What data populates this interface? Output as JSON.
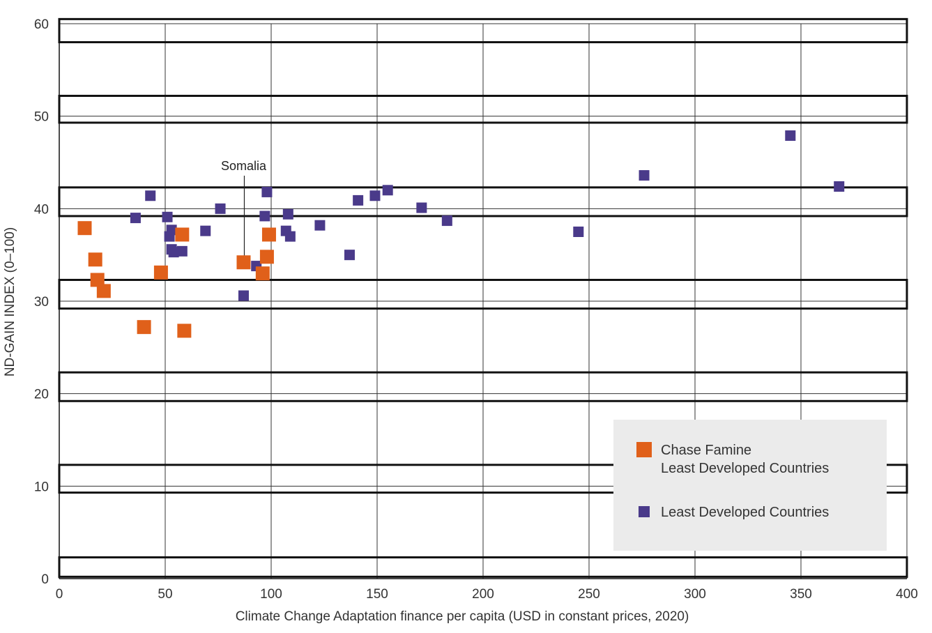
{
  "chart_data": {
    "type": "scatter",
    "title": "",
    "xlabel": "Climate Change Adaptation finance per capita (USD in constant prices, 2020)",
    "ylabel": "ND-GAIN INDEX (0–100)",
    "xlim": [
      0,
      400
    ],
    "ylim": [
      0,
      60
    ],
    "xticks": [
      0,
      50,
      100,
      150,
      200,
      250,
      300,
      350,
      400
    ],
    "yticks": [
      0,
      10,
      20,
      30,
      40,
      50,
      60
    ],
    "grid": true,
    "legend_position": "bottom-right",
    "bands": [
      [
        58,
        60.5
      ],
      [
        49.3,
        52.2
      ],
      [
        39.2,
        42.3
      ],
      [
        29.2,
        32.3
      ],
      [
        19.2,
        22.3
      ],
      [
        9.3,
        12.3
      ],
      [
        0.2,
        2.3
      ]
    ],
    "series": [
      {
        "name": "Chase Famine\nLeast Developed Countries",
        "color": "#e0601a",
        "marker": "square-large",
        "points": [
          {
            "x": 12,
            "y": 37.9
          },
          {
            "x": 17,
            "y": 34.5
          },
          {
            "x": 18,
            "y": 32.3
          },
          {
            "x": 21,
            "y": 31.1
          },
          {
            "x": 40,
            "y": 27.2
          },
          {
            "x": 48,
            "y": 33.1
          },
          {
            "x": 58,
            "y": 37.2
          },
          {
            "x": 59,
            "y": 26.8
          },
          {
            "x": 87,
            "y": 34.2
          },
          {
            "x": 96,
            "y": 33.0
          },
          {
            "x": 98,
            "y": 34.8
          },
          {
            "x": 99,
            "y": 37.2
          }
        ]
      },
      {
        "name": "Least Developed Countries",
        "color": "#4a3a8a",
        "marker": "square-small",
        "points": [
          {
            "x": 36,
            "y": 39.0
          },
          {
            "x": 43,
            "y": 41.4
          },
          {
            "x": 51,
            "y": 39.1
          },
          {
            "x": 52,
            "y": 37.0
          },
          {
            "x": 53,
            "y": 37.7
          },
          {
            "x": 53,
            "y": 35.6
          },
          {
            "x": 54,
            "y": 35.3
          },
          {
            "x": 58,
            "y": 35.4
          },
          {
            "x": 69,
            "y": 37.6
          },
          {
            "x": 76,
            "y": 40.0
          },
          {
            "x": 87,
            "y": 30.6
          },
          {
            "x": 93,
            "y": 33.8
          },
          {
            "x": 97,
            "y": 39.2
          },
          {
            "x": 98,
            "y": 41.8
          },
          {
            "x": 107,
            "y": 37.6
          },
          {
            "x": 108,
            "y": 39.4
          },
          {
            "x": 109,
            "y": 37.0
          },
          {
            "x": 123,
            "y": 38.2
          },
          {
            "x": 137,
            "y": 35.0
          },
          {
            "x": 141,
            "y": 40.9
          },
          {
            "x": 149,
            "y": 41.4
          },
          {
            "x": 155,
            "y": 42.0
          },
          {
            "x": 171,
            "y": 40.1
          },
          {
            "x": 183,
            "y": 38.7
          },
          {
            "x": 245,
            "y": 37.5
          },
          {
            "x": 276,
            "y": 43.6
          },
          {
            "x": 345,
            "y": 47.9
          },
          {
            "x": 368,
            "y": 42.4
          }
        ]
      }
    ],
    "annotations": [
      {
        "text": "Somalia",
        "x": 87,
        "y": 34.2
      }
    ]
  }
}
